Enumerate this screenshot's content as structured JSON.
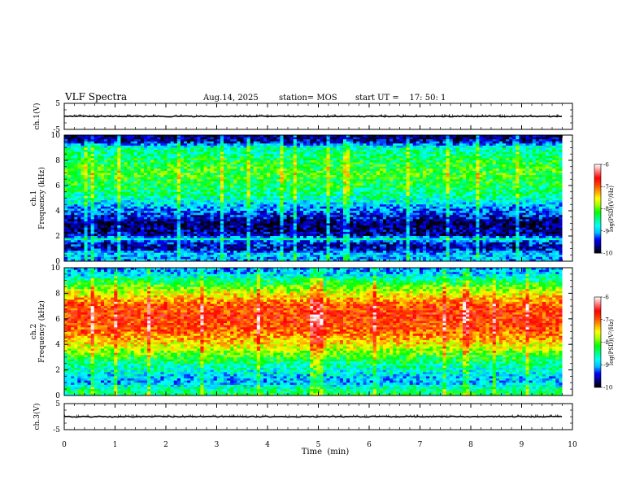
{
  "header": {
    "title": "VLF Spectra",
    "date": "Aug.14, 2025",
    "station": "station= MOS",
    "start": "start UT =    17: 50: 1"
  },
  "colors": {
    "scale": [
      "#000000",
      "#000080",
      "#0000ff",
      "#00c0ff",
      "#00ffff",
      "#00ff80",
      "#00ff00",
      "#a0ff00",
      "#ffff00",
      "#ffa000",
      "#ff4000",
      "#ff0000",
      "#ff8080",
      "#ffffff"
    ]
  },
  "chart_data": [
    {
      "type": "line",
      "panel": "ch1-waveform",
      "ylabel": "ch.1(V)",
      "ylim": [
        -5,
        5
      ],
      "yticks": [
        "5",
        "-5"
      ],
      "xlim": [
        0,
        10
      ],
      "level": 0,
      "x_end": 9.8
    },
    {
      "type": "heatmap",
      "panel": "ch1-spectrogram",
      "ylabel": "ch.1\nFrequency (kHz)",
      "ylim": [
        0,
        10
      ],
      "yticks": [
        "0",
        "2",
        "4",
        "6",
        "8",
        "10"
      ],
      "xlim": [
        0,
        10
      ],
      "x_end": 9.8,
      "colorbar": {
        "label": "log(PSD)(V²/Hz)",
        "range": [
          -10,
          -6
        ],
        "ticks": [
          "-6",
          "-7",
          "-8",
          "-9",
          "-10"
        ]
      },
      "band_profile": [
        {
          "f": 0.0,
          "v": -9.1
        },
        {
          "f": 0.5,
          "v": -8.9
        },
        {
          "f": 1.0,
          "v": -9.6
        },
        {
          "f": 1.5,
          "v": -9.4
        },
        {
          "f": 1.8,
          "v": -8.6
        },
        {
          "f": 2.0,
          "v": -9.6
        },
        {
          "f": 3.0,
          "v": -9.8
        },
        {
          "f": 4.0,
          "v": -9.2
        },
        {
          "f": 5.0,
          "v": -8.6
        },
        {
          "f": 6.0,
          "v": -8.3
        },
        {
          "f": 7.0,
          "v": -8.1
        },
        {
          "f": 8.0,
          "v": -8.3
        },
        {
          "f": 9.0,
          "v": -8.6
        },
        {
          "f": 9.5,
          "v": -9.6
        },
        {
          "f": 10.0,
          "v": -9.8
        }
      ]
    },
    {
      "type": "heatmap",
      "panel": "ch2-spectrogram",
      "ylabel": "ch.2\nFrequency (kHz)",
      "ylim": [
        0,
        10
      ],
      "yticks": [
        "0",
        "2",
        "4",
        "6",
        "8",
        "10"
      ],
      "xlim": [
        0,
        10
      ],
      "x_end": 9.8,
      "colorbar": {
        "label": "log(PSD)(V²/Hz)",
        "range": [
          -10,
          -6
        ],
        "ticks": [
          "-6",
          "-7",
          "-8",
          "-9",
          "-10"
        ]
      },
      "band_profile": [
        {
          "f": 0.0,
          "v": -8.3
        },
        {
          "f": 0.5,
          "v": -8.5
        },
        {
          "f": 1.0,
          "v": -9.0
        },
        {
          "f": 1.5,
          "v": -8.9
        },
        {
          "f": 2.0,
          "v": -8.7
        },
        {
          "f": 3.0,
          "v": -8.2
        },
        {
          "f": 4.0,
          "v": -7.5
        },
        {
          "f": 5.0,
          "v": -7.0
        },
        {
          "f": 6.0,
          "v": -6.8
        },
        {
          "f": 7.0,
          "v": -6.9
        },
        {
          "f": 8.0,
          "v": -7.6
        },
        {
          "f": 9.0,
          "v": -8.4
        },
        {
          "f": 9.5,
          "v": -8.9
        },
        {
          "f": 10.0,
          "v": -9.1
        }
      ]
    },
    {
      "type": "line",
      "panel": "ch3-waveform",
      "ylabel": "ch.3(V)",
      "ylim": [
        -5,
        5
      ],
      "yticks": [
        "5",
        "-5"
      ],
      "xlim": [
        0,
        10
      ],
      "level": 0,
      "x_end": 9.8
    }
  ],
  "xaxis": {
    "label": "Time  (min)",
    "ticks": [
      "0",
      "1",
      "2",
      "3",
      "4",
      "5",
      "6",
      "7",
      "8",
      "9",
      "10"
    ]
  }
}
